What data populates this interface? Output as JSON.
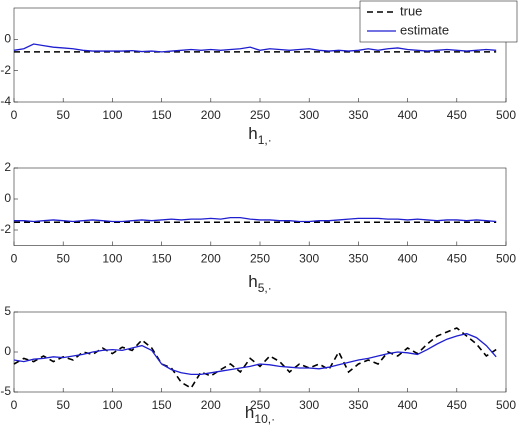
{
  "chart_data": [
    {
      "type": "line",
      "x_label": {
        "base": "h",
        "sub": "1,·"
      },
      "legend": "upper right",
      "xlim": [
        0,
        500
      ],
      "xticks": [
        0,
        50,
        100,
        150,
        200,
        250,
        300,
        350,
        400,
        450,
        500
      ],
      "ylim": [
        -4,
        2
      ],
      "yticks": [
        -4,
        -2,
        0
      ],
      "x": [
        0,
        10,
        20,
        30,
        40,
        50,
        60,
        70,
        80,
        90,
        100,
        110,
        120,
        130,
        140,
        150,
        160,
        170,
        180,
        190,
        200,
        210,
        220,
        230,
        240,
        250,
        260,
        270,
        280,
        290,
        300,
        310,
        320,
        330,
        340,
        350,
        360,
        370,
        380,
        390,
        400,
        410,
        420,
        430,
        440,
        450,
        460,
        470,
        480,
        490
      ],
      "series": [
        {
          "name": "true",
          "color": "#000000",
          "dash": true,
          "values": [
            -0.8,
            -0.8,
            -0.8,
            -0.8,
            -0.8,
            -0.8,
            -0.8,
            -0.8,
            -0.8,
            -0.8,
            -0.8,
            -0.8,
            -0.8,
            -0.8,
            -0.8,
            -0.8,
            -0.8,
            -0.8,
            -0.8,
            -0.8,
            -0.8,
            -0.8,
            -0.8,
            -0.8,
            -0.8,
            -0.8,
            -0.8,
            -0.8,
            -0.8,
            -0.8,
            -0.8,
            -0.8,
            -0.8,
            -0.8,
            -0.8,
            -0.8,
            -0.8,
            -0.8,
            -0.8,
            -0.8,
            -0.8,
            -0.8,
            -0.8,
            -0.8,
            -0.8,
            -0.8,
            -0.8,
            -0.8,
            -0.8,
            -0.8
          ]
        },
        {
          "name": "estimate",
          "color": "#1f1fd0",
          "dash": false,
          "values": [
            -0.7,
            -0.6,
            -0.3,
            -0.4,
            -0.5,
            -0.55,
            -0.6,
            -0.7,
            -0.75,
            -0.75,
            -0.75,
            -0.75,
            -0.72,
            -0.78,
            -0.75,
            -0.8,
            -0.75,
            -0.7,
            -0.65,
            -0.7,
            -0.65,
            -0.7,
            -0.65,
            -0.6,
            -0.5,
            -0.7,
            -0.6,
            -0.65,
            -0.7,
            -0.65,
            -0.6,
            -0.7,
            -0.75,
            -0.7,
            -0.75,
            -0.7,
            -0.6,
            -0.7,
            -0.6,
            -0.55,
            -0.65,
            -0.7,
            -0.75,
            -0.7,
            -0.65,
            -0.7,
            -0.75,
            -0.7,
            -0.65,
            -0.7
          ]
        }
      ]
    },
    {
      "type": "line",
      "x_label": {
        "base": "h",
        "sub": "5,·"
      },
      "xlim": [
        0,
        500
      ],
      "xticks": [
        0,
        50,
        100,
        150,
        200,
        250,
        300,
        350,
        400,
        450,
        500
      ],
      "ylim": [
        -3,
        2
      ],
      "yticks": [
        -2,
        0,
        2
      ],
      "x": [
        0,
        10,
        20,
        30,
        40,
        50,
        60,
        70,
        80,
        90,
        100,
        110,
        120,
        130,
        140,
        150,
        160,
        170,
        180,
        190,
        200,
        210,
        220,
        230,
        240,
        250,
        260,
        270,
        280,
        290,
        300,
        310,
        320,
        330,
        340,
        350,
        360,
        370,
        380,
        390,
        400,
        410,
        420,
        430,
        440,
        450,
        460,
        470,
        480,
        490
      ],
      "series": [
        {
          "color": "#000000",
          "dash": true,
          "values": [
            -1.5,
            -1.5,
            -1.5,
            -1.5,
            -1.5,
            -1.5,
            -1.5,
            -1.5,
            -1.5,
            -1.5,
            -1.5,
            -1.5,
            -1.5,
            -1.5,
            -1.5,
            -1.5,
            -1.5,
            -1.5,
            -1.5,
            -1.5,
            -1.5,
            -1.5,
            -1.5,
            -1.5,
            -1.5,
            -1.5,
            -1.5,
            -1.5,
            -1.5,
            -1.5,
            -1.5,
            -1.5,
            -1.5,
            -1.5,
            -1.5,
            -1.5,
            -1.5,
            -1.5,
            -1.5,
            -1.5,
            -1.5,
            -1.5,
            -1.5,
            -1.5,
            -1.5,
            -1.5,
            -1.5,
            -1.5,
            -1.5,
            -1.5
          ]
        },
        {
          "color": "#1f1fd0",
          "dash": false,
          "values": [
            -1.4,
            -1.4,
            -1.45,
            -1.4,
            -1.35,
            -1.4,
            -1.45,
            -1.4,
            -1.35,
            -1.4,
            -1.45,
            -1.45,
            -1.4,
            -1.35,
            -1.4,
            -1.35,
            -1.3,
            -1.35,
            -1.3,
            -1.3,
            -1.25,
            -1.3,
            -1.2,
            -1.2,
            -1.3,
            -1.35,
            -1.35,
            -1.4,
            -1.4,
            -1.45,
            -1.45,
            -1.4,
            -1.4,
            -1.35,
            -1.3,
            -1.25,
            -1.25,
            -1.25,
            -1.3,
            -1.3,
            -1.35,
            -1.3,
            -1.35,
            -1.4,
            -1.35,
            -1.35,
            -1.4,
            -1.35,
            -1.4,
            -1.45
          ]
        }
      ]
    },
    {
      "type": "line",
      "x_label": {
        "base": "h",
        "sub": "10,·"
      },
      "xlim": [
        0,
        500
      ],
      "xticks": [
        0,
        50,
        100,
        150,
        200,
        250,
        300,
        350,
        400,
        450,
        500
      ],
      "ylim": [
        -5,
        5
      ],
      "yticks": [
        -5,
        0,
        5
      ],
      "x": [
        0,
        10,
        20,
        30,
        40,
        50,
        60,
        70,
        80,
        90,
        100,
        110,
        120,
        130,
        140,
        150,
        160,
        170,
        180,
        190,
        200,
        210,
        220,
        230,
        240,
        250,
        260,
        270,
        280,
        290,
        300,
        310,
        320,
        330,
        340,
        350,
        360,
        370,
        380,
        390,
        400,
        410,
        420,
        430,
        440,
        450,
        460,
        470,
        480,
        490
      ],
      "series": [
        {
          "color": "#000000",
          "dash": true,
          "values": [
            -1.5,
            -0.8,
            -1.2,
            -0.5,
            -1.2,
            -0.6,
            -1,
            0,
            -0.3,
            0.5,
            -0.2,
            0.6,
            0.2,
            1.5,
            0.5,
            -1.5,
            -2,
            -3.8,
            -4.5,
            -2.5,
            -3,
            -2.2,
            -1.5,
            -2.5,
            -0.8,
            -1.8,
            -0.5,
            -1.2,
            -2.5,
            -1.5,
            -2,
            -1.5,
            -2.2,
            0,
            -2.5,
            -1.5,
            -1,
            -1.5,
            0,
            -0.5,
            0.5,
            -0.2,
            1,
            2,
            2.5,
            3,
            2,
            1,
            -0.5,
            0.3
          ]
        },
        {
          "color": "#1f1fd0",
          "dash": false,
          "values": [
            -1,
            -1.2,
            -0.9,
            -0.8,
            -0.6,
            -0.7,
            -0.5,
            -0.3,
            0,
            0.2,
            0.3,
            0.2,
            0.5,
            0.8,
            0.2,
            -1.5,
            -2.2,
            -2.6,
            -2.8,
            -2.8,
            -2.6,
            -2.4,
            -2.2,
            -2,
            -1.8,
            -1.5,
            -1.6,
            -1.8,
            -1.9,
            -2,
            -2,
            -2.1,
            -1.9,
            -1.6,
            -1.3,
            -1,
            -0.8,
            -0.5,
            -0.2,
            0,
            -0.1,
            -0.3,
            0.3,
            1,
            1.6,
            2,
            2.3,
            1.8,
            0.8,
            -0.6
          ]
        }
      ]
    }
  ]
}
